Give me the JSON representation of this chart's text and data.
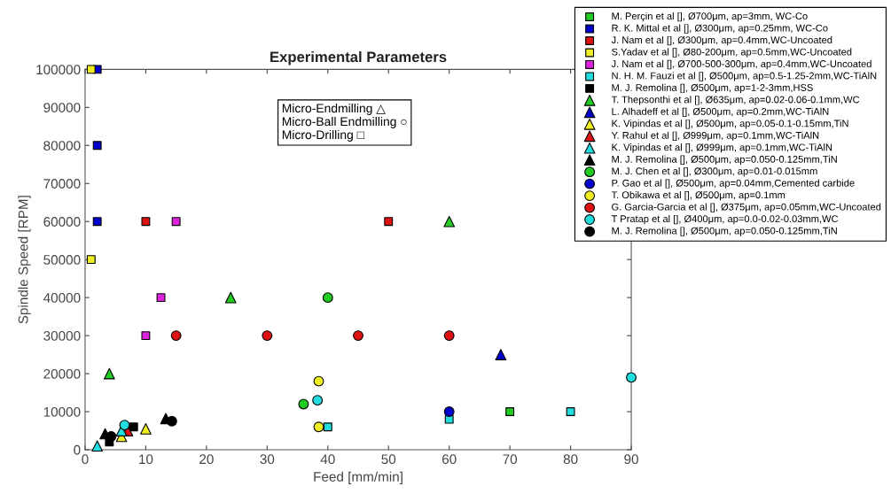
{
  "chart_data": {
    "type": "scatter",
    "title": "Experimental Parameters",
    "xlabel": "Feed [mm/min]",
    "ylabel": "Spindle Speed [RPM]",
    "xlim": [
      0,
      90
    ],
    "ylim": [
      0,
      100000
    ],
    "xticks": [
      0,
      10,
      20,
      30,
      40,
      50,
      60,
      70,
      80,
      90
    ],
    "yticks": [
      0,
      10000,
      20000,
      30000,
      40000,
      50000,
      60000,
      70000,
      80000,
      90000,
      100000
    ],
    "grid": false,
    "legend": "top right",
    "annotations": [
      "Micro-Endmilling △",
      "Micro-Ball Endmilling ○",
      "Micro-Drilling □"
    ],
    "series": [
      {
        "name": "M. Perçin et al [], Ø700μm, ap=3mm, WC-Co",
        "color": "#22cc22",
        "marker": "square",
        "x": [
          70
        ],
        "values": [
          10000
        ]
      },
      {
        "name": "R. K. Mittal et al [], Ø300μm, ap=0.25mm, WC-Co",
        "color": "#0000cc",
        "marker": "square",
        "x": [
          2,
          2,
          2
        ],
        "values": [
          100000,
          80000,
          60000
        ]
      },
      {
        "name": "J. Nam et al [], Ø300μm, ap=0.4mm,WC-Uncoated",
        "color": "#dd1111",
        "marker": "square",
        "x": [
          10,
          50
        ],
        "values": [
          60000,
          60000
        ]
      },
      {
        "name": "S.Yadav et al [], Ø80-200μm, ap=0.5mm,WC-Uncoated",
        "color": "#eeee22",
        "marker": "square",
        "x": [
          1,
          1
        ],
        "values": [
          100000,
          50000
        ]
      },
      {
        "name": "J. Nam et al [], Ø700-500-300μm, ap=0.4mm,WC-Uncoated",
        "color": "#dd22dd",
        "marker": "square",
        "x": [
          10,
          12.5,
          15
        ],
        "values": [
          30000,
          40000,
          60000
        ]
      },
      {
        "name": "N. H. M. Fauzi et al [], Ø500μm, ap=0.5-1.25-2mm,WC-TiAlN",
        "color": "#22dddd",
        "marker": "square",
        "x": [
          40,
          60,
          80
        ],
        "values": [
          6000,
          8000,
          10000
        ]
      },
      {
        "name": "M. J. Remolina [], Ø500μm, ap=1-2-3mm,HSS",
        "color": "#000000",
        "marker": "square",
        "x": [
          4,
          8
        ],
        "values": [
          2000,
          6000
        ]
      },
      {
        "name": "T. Thepsonthi et al [], Ø635μm, ap=0.02-0.06-0.1mm,WC",
        "color": "#22cc22",
        "marker": "triangle",
        "x": [
          4,
          24,
          60
        ],
        "values": [
          20000,
          40000,
          60000
        ]
      },
      {
        "name": "L. Alhadeff et al [], Ø500μm, ap=0.2mm,WC-TiAlN",
        "color": "#0000cc",
        "marker": "triangle",
        "x": [
          68.5
        ],
        "values": [
          25000
        ]
      },
      {
        "name": "K. Vipindas et al [], Ø500μm, ap=0.05-0.1-0.15mm,TiN",
        "color": "#eeee22",
        "marker": "triangle",
        "x": [
          6,
          10
        ],
        "values": [
          3500,
          5500
        ]
      },
      {
        "name": "Y. Rahul et al [], Ø999μm, ap=0.1mm,WC-TiAlN",
        "color": "#dd1111",
        "marker": "triangle",
        "x": [
          7
        ],
        "values": [
          5000
        ]
      },
      {
        "name": "K. Vipindas et al [], Ø999μm, ap=0.1mm,WC-TiAlN",
        "color": "#22dddd",
        "marker": "triangle",
        "x": [
          2,
          6
        ],
        "values": [
          1000,
          5000
        ]
      },
      {
        "name": "M. J. Remolina [], Ø500μm, ap=0.050-0.125mm,TiN",
        "color": "#000000",
        "marker": "triangle",
        "x": [
          3.3,
          13.3
        ],
        "values": [
          4200,
          8200
        ]
      },
      {
        "name": "M. J. Chen et al [], Ø300μm, ap=0.01-0.015mm",
        "color": "#22cc22",
        "marker": "circle",
        "x": [
          40,
          36
        ],
        "values": [
          40000,
          12000
        ]
      },
      {
        "name": "P. Gao et al [], Ø500μm, ap=0.04mm,Cemented carbide",
        "color": "#0000cc",
        "marker": "circle",
        "x": [
          60
        ],
        "values": [
          10000
        ]
      },
      {
        "name": "T. Obikawa et al [], Ø500μm, ap=0.1mm",
        "color": "#eeee22",
        "marker": "circle",
        "x": [
          38.5,
          38.5
        ],
        "values": [
          18000,
          6000
        ]
      },
      {
        "name": "G. Garcia-Garcia et al [], Ø375μm, ap=0.05mm,WC-Uncoated",
        "color": "#dd1111",
        "marker": "circle",
        "x": [
          15,
          30,
          45,
          60
        ],
        "values": [
          30000,
          30000,
          30000,
          30000
        ]
      },
      {
        "name": "T Pratap et al [], Ø400μm, ap=0.0-0.02-0.03mm,WC",
        "color": "#22dddd",
        "marker": "circle",
        "x": [
          38.3,
          90,
          6.5
        ],
        "values": [
          13000,
          19000,
          6500
        ]
      },
      {
        "name": "M. J. Remolina [], Ø500μm, ap=0.050-0.125mm,TiN",
        "color": "#000000",
        "marker": "circle",
        "x": [
          4.3,
          14.3
        ],
        "values": [
          3500,
          7500
        ]
      }
    ]
  }
}
